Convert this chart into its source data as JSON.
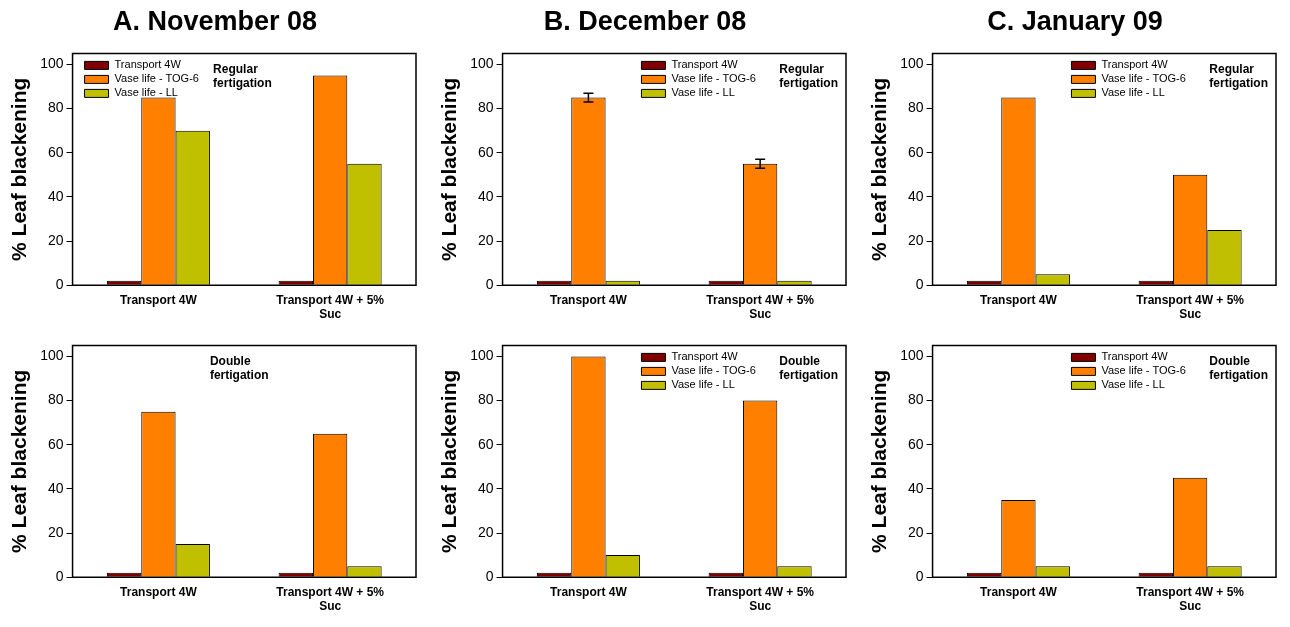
{
  "chart_data": [
    {
      "type": "bar",
      "title": "A. November 08",
      "ylabel": "% Leaf blackening",
      "categories": [
        "Transport 4W",
        "Transport 4W + 5% Suc"
      ],
      "series": [
        {
          "name": "Transport 4W",
          "color": "#800000",
          "values": [
            2,
            2
          ]
        },
        {
          "name": "Vase life - TOG-6",
          "color": "#ff8000",
          "values": [
            85,
            95
          ]
        },
        {
          "name": "Vase life - LL",
          "color": "#c0c000",
          "values": [
            70,
            55
          ]
        }
      ],
      "ylim": [
        0,
        105
      ],
      "yticks": [
        0,
        20,
        40,
        60,
        80,
        100
      ],
      "legend": "top left",
      "annotations": [
        "Regular fertigation"
      ]
    },
    {
      "type": "bar",
      "title": "B. December 08",
      "ylabel": "% Leaf blackening",
      "categories": [
        "Transport 4W",
        "Transport 4W + 5% Suc"
      ],
      "series": [
        {
          "name": "Transport 4W",
          "color": "#800000",
          "values": [
            2,
            2
          ]
        },
        {
          "name": "Vase life - TOG-6",
          "color": "#ff8000",
          "values": [
            85,
            55
          ],
          "errors": [
            2,
            2
          ]
        },
        {
          "name": "Vase life - LL",
          "color": "#c0c000",
          "values": [
            2,
            2
          ]
        }
      ],
      "ylim": [
        0,
        105
      ],
      "yticks": [
        0,
        20,
        40,
        60,
        80,
        100
      ],
      "legend": "top right",
      "annotations": [
        "Regular fertigation"
      ]
    },
    {
      "type": "bar",
      "title": "C. January 09",
      "ylabel": "% Leaf blackening",
      "categories": [
        "Transport 4W",
        "Transport 4W + 5% Suc"
      ],
      "series": [
        {
          "name": "Transport 4W",
          "color": "#800000",
          "values": [
            2,
            2
          ]
        },
        {
          "name": "Vase life - TOG-6",
          "color": "#ff8000",
          "values": [
            85,
            50
          ]
        },
        {
          "name": "Vase life - LL",
          "color": "#c0c000",
          "values": [
            5,
            25
          ]
        }
      ],
      "ylim": [
        0,
        105
      ],
      "yticks": [
        0,
        20,
        40,
        60,
        80,
        100
      ],
      "legend": "top right",
      "annotations": [
        "Regular fertigation"
      ]
    },
    {
      "type": "bar",
      "ylabel": "% Leaf blackening",
      "categories": [
        "Transport 4W",
        "Transport 4W + 5% Suc"
      ],
      "series": [
        {
          "color": "#800000",
          "values": [
            2,
            2
          ]
        },
        {
          "color": "#ff8000",
          "values": [
            75,
            65
          ]
        },
        {
          "color": "#c0c000",
          "values": [
            15,
            5
          ]
        }
      ],
      "ylim": [
        0,
        105
      ],
      "yticks": [
        0,
        20,
        40,
        60,
        80,
        100
      ],
      "annotations": [
        "Double fertigation"
      ]
    },
    {
      "type": "bar",
      "ylabel": "% Leaf blackening",
      "categories": [
        "Transport 4W",
        "Transport 4W + 5% Suc"
      ],
      "series": [
        {
          "name": "Transport 4W",
          "color": "#800000",
          "values": [
            2,
            2
          ]
        },
        {
          "name": "Vase life - TOG-6",
          "color": "#ff8000",
          "values": [
            100,
            80
          ]
        },
        {
          "name": "Vase life - LL",
          "color": "#c0c000",
          "values": [
            10,
            5
          ]
        }
      ],
      "ylim": [
        0,
        105
      ],
      "yticks": [
        0,
        20,
        40,
        60,
        80,
        100
      ],
      "legend": "top right",
      "annotations": [
        "Double fertigation"
      ]
    },
    {
      "type": "bar",
      "ylabel": "% Leaf blackening",
      "categories": [
        "Transport 4W",
        "Transport 4W + 5% Suc"
      ],
      "series": [
        {
          "name": "Transport 4W",
          "color": "#800000",
          "values": [
            2,
            2
          ]
        },
        {
          "name": "Vase life - TOG-6",
          "color": "#ff8000",
          "values": [
            35,
            45
          ]
        },
        {
          "name": "Vase life - LL",
          "color": "#c0c000",
          "values": [
            5,
            5
          ]
        }
      ],
      "ylim": [
        0,
        105
      ],
      "yticks": [
        0,
        20,
        40,
        60,
        80,
        100
      ],
      "legend": "top right",
      "annotations": [
        "Double fertigation"
      ]
    }
  ]
}
